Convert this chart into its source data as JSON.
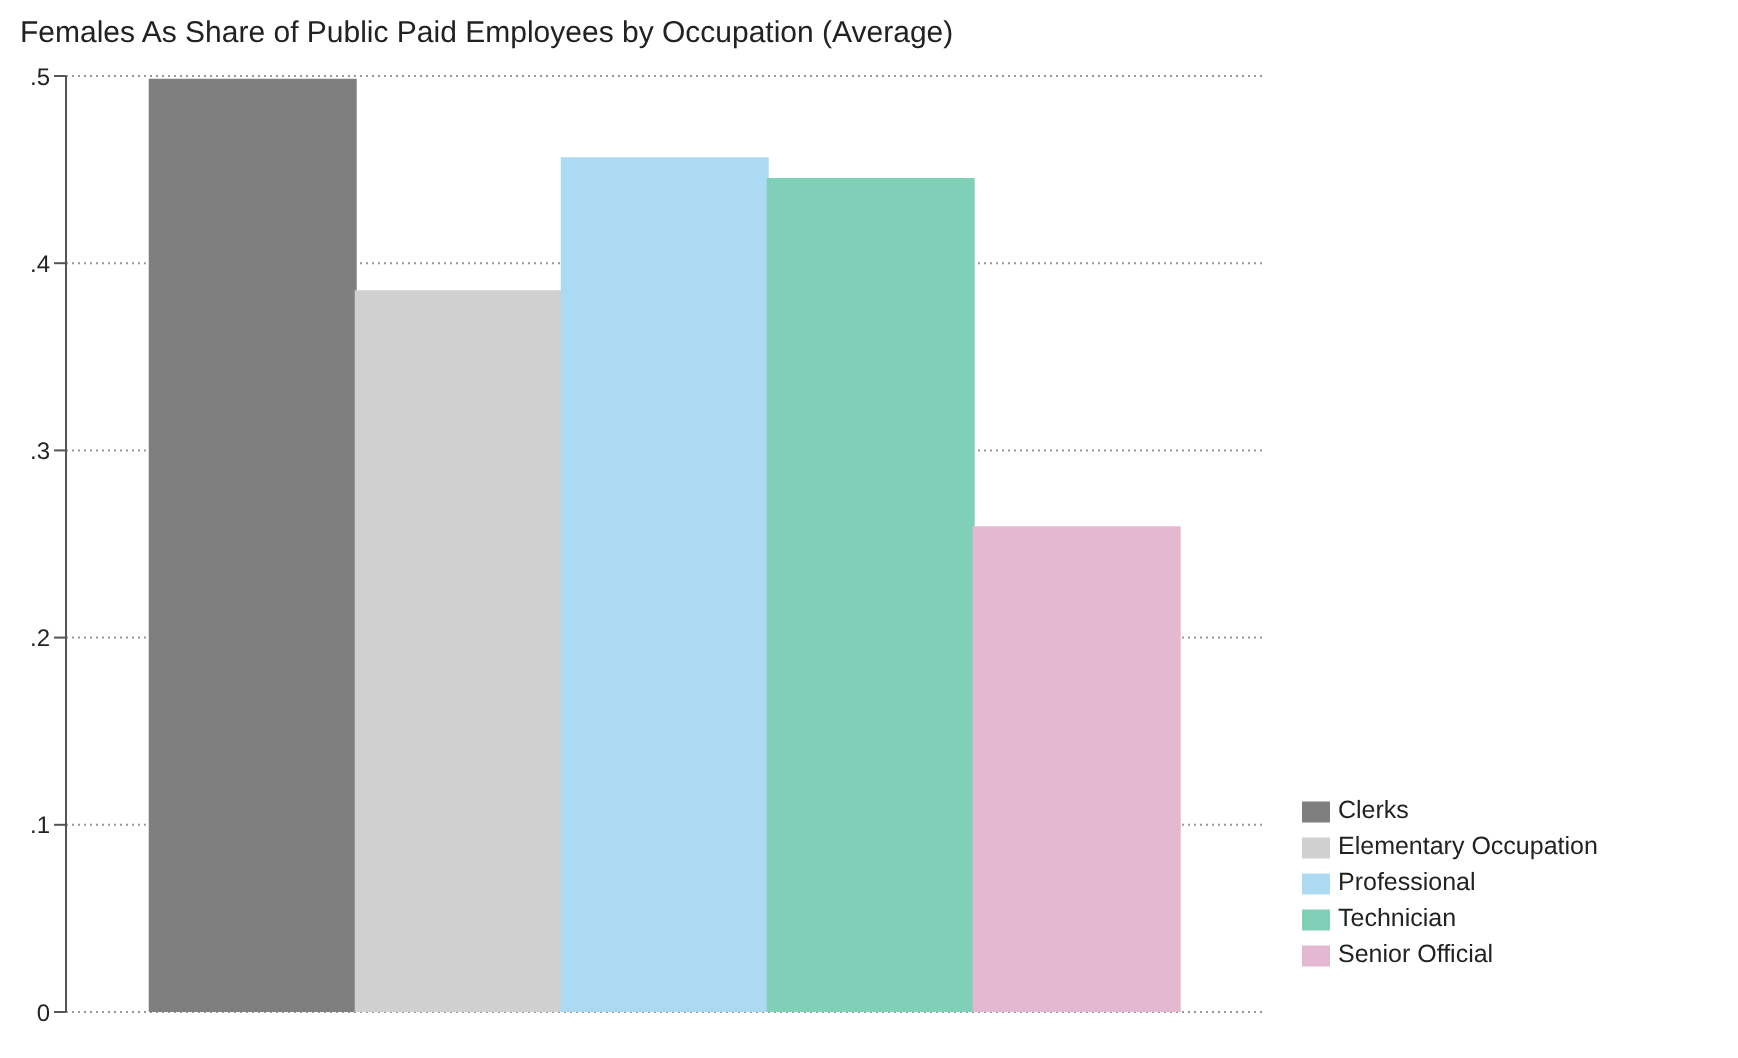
{
  "chart_data": {
    "type": "bar",
    "title": "Females As Share of Public Paid Employees by Occupation (Average)",
    "categories": [
      null
    ],
    "series": [
      {
        "name": "Clerks",
        "color": "#7f7f7f",
        "values": [
          0.498
        ]
      },
      {
        "name": "Elementary Occupation",
        "color": "#d0d0d0",
        "values": [
          0.385
        ]
      },
      {
        "name": "Professional",
        "color": "#acdaf2",
        "values": [
          0.456
        ]
      },
      {
        "name": "Technician",
        "color": "#80d0b8",
        "values": [
          0.445
        ]
      },
      {
        "name": "Senior Official",
        "color": "#e5b8d2",
        "values": [
          0.259
        ]
      }
    ],
    "ylim": [
      0,
      0.5
    ],
    "yticks": [
      0,
      {
        "value": 0.1,
        "label": ".1"
      },
      {
        "value": 0.2,
        "label": ".2"
      },
      {
        "value": 0.3,
        "label": ".3"
      },
      {
        "value": 0.4,
        "label": ".4"
      },
      {
        "value": 0.5,
        "label": ".5"
      }
    ],
    "grid": "y",
    "legend": "bottom right"
  }
}
